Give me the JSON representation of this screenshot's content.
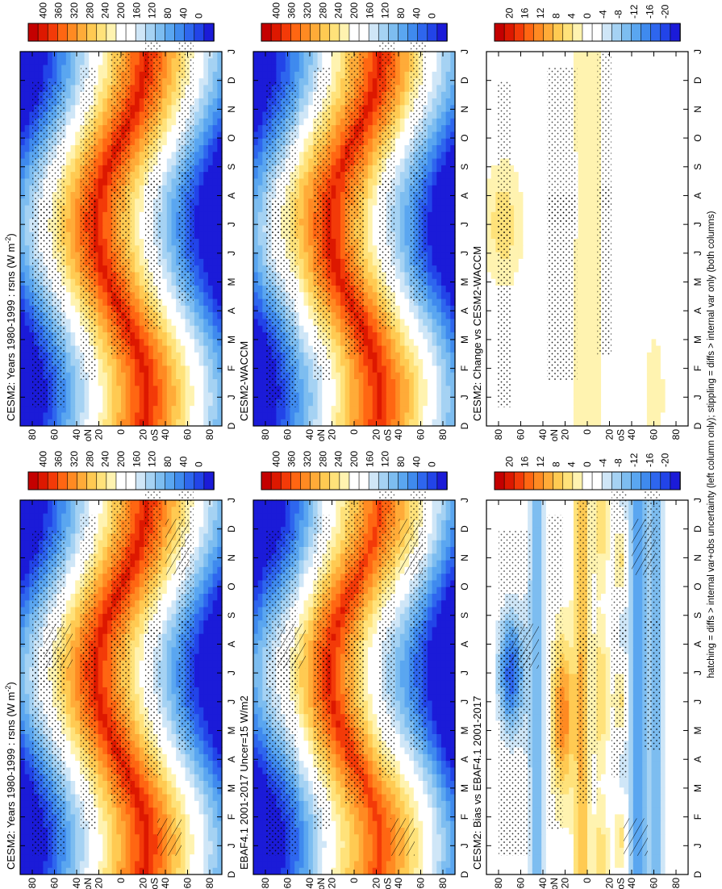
{
  "footnote": "hatching = diffs > internal var+obs uncertainty (left column only); stippling = diffs > internal var only (both columns)",
  "month_ticks": [
    "D",
    "J",
    "F",
    "M",
    "A",
    "M",
    "J",
    "J",
    "A",
    "S",
    "O",
    "N",
    "D",
    "J"
  ],
  "lat_ticks": [
    "80",
    "60",
    "40",
    "20",
    "0",
    "20",
    "40",
    "60",
    "80"
  ],
  "lat_units": {
    "north": "oN",
    "south": "oS"
  },
  "colors": {
    "abs_scale": [
      "#1b1bd8",
      "#2244e8",
      "#2e66ee",
      "#3f8aee",
      "#5aa6f0",
      "#7dbdf0",
      "#a5d2f3",
      "#cfe6f7",
      "#ffffff",
      "#ffffff",
      "#fff3b0",
      "#ffe27a",
      "#ffca52",
      "#ffab38",
      "#ff8a22",
      "#ff6612",
      "#f33a08",
      "#dd1800",
      "#c40000"
    ],
    "diff_scale": [
      "#1b1bd8",
      "#2244e8",
      "#2e66ee",
      "#3f8aee",
      "#5aa6f0",
      "#7dbdf0",
      "#a5d2f3",
      "#cfe6f7",
      "#ffffff",
      "#ffffff",
      "#fff3b0",
      "#ffe27a",
      "#ffca52",
      "#ffab38",
      "#ff8a22",
      "#ff6612",
      "#f33a08",
      "#dd1800",
      "#c40000"
    ]
  },
  "chart_data": [
    {
      "type": "heatmap",
      "title": "CESM2: Years 1980-1999 : rsns (W m<sup>-2</sup>)",
      "title_text": "CESM2: Years 1980-1999 : rsns (W m",
      "title_sup": "-2",
      "title_end": ")",
      "colorbar_ticks": [
        "400",
        "360",
        "320",
        "280",
        "240",
        "200",
        "160",
        "120",
        "80",
        "40",
        "0"
      ],
      "variant": "model",
      "hatching": true
    },
    {
      "type": "heatmap",
      "title_text": "EBAF4.1 2001-2017 Uncer=15 W/m2",
      "title_sup": "",
      "title_end": "",
      "colorbar_ticks": [
        "400",
        "360",
        "320",
        "280",
        "240",
        "200",
        "160",
        "120",
        "80",
        "40",
        "0"
      ],
      "variant": "obs",
      "hatching": true
    },
    {
      "type": "heatmap",
      "title_text": "CESM2: Bias vs EBAF4.1 2001-2017",
      "title_sup": "",
      "title_end": "",
      "colorbar_ticks": [
        "20",
        "16",
        "12",
        "8",
        "4",
        "0",
        "-4",
        "-8",
        "-12",
        "-16",
        "-20"
      ],
      "variant": "bias",
      "hatching": true
    },
    {
      "type": "heatmap",
      "title_text": "CESM2: Years 1980-1999 : rsns (W m",
      "title_sup": "-2",
      "title_end": ")",
      "colorbar_ticks": [
        "400",
        "360",
        "320",
        "280",
        "240",
        "200",
        "160",
        "120",
        "80",
        "40",
        "0"
      ],
      "variant": "model",
      "hatching": false
    },
    {
      "type": "heatmap",
      "title_text": "CESM2-WACCM",
      "title_sup": "",
      "title_end": "",
      "colorbar_ticks": [
        "400",
        "360",
        "320",
        "280",
        "240",
        "200",
        "160",
        "120",
        "80",
        "40",
        "0"
      ],
      "variant": "model2",
      "hatching": false
    },
    {
      "type": "heatmap",
      "title_text": "CESM2: Change vs CESM2-WACCM",
      "title_sup": "",
      "title_end": "",
      "colorbar_ticks": [
        "20",
        "16",
        "12",
        "8",
        "4",
        "0",
        "-4",
        "-8",
        "-12",
        "-16",
        "-20"
      ],
      "variant": "change",
      "hatching": false
    }
  ]
}
